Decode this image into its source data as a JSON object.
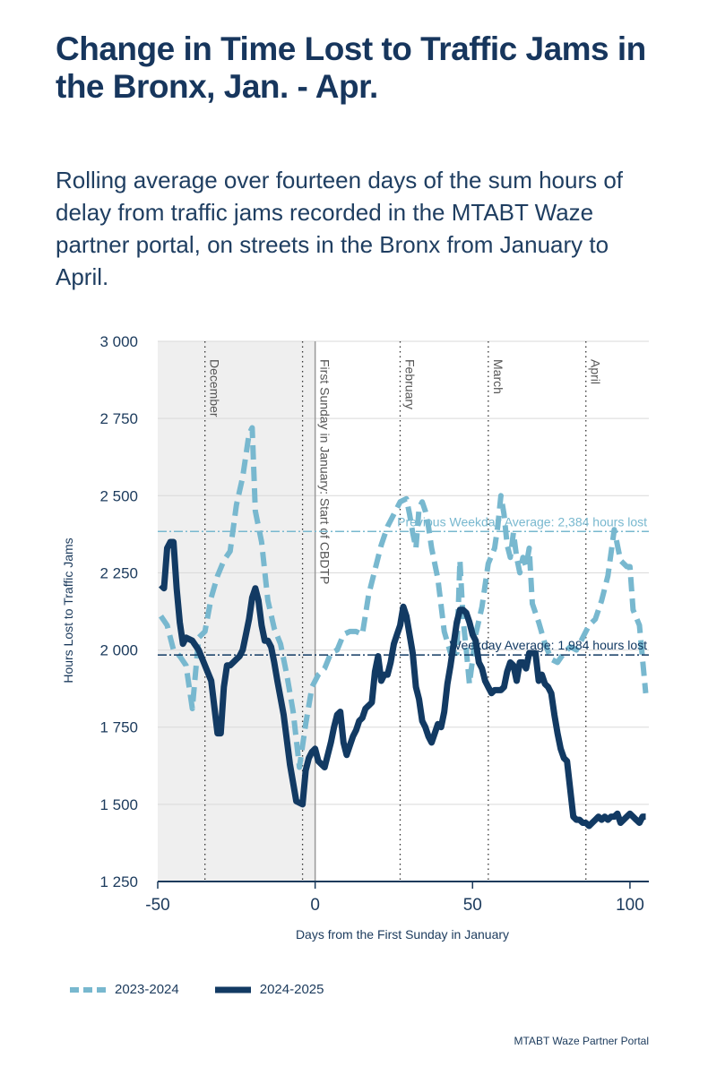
{
  "header": {
    "title": "Change in Time Lost to Traffic Jams in the Bronx, Jan. - Apr.",
    "subtitle": "Rolling average over fourteen days of the sum hours of delay from traffic jams recorded in the MTABT Waze partner portal, on streets in the Bronx from January to April."
  },
  "source": "MTABT Waze Partner Portal",
  "colors": {
    "series_2023": "#78b8cf",
    "series_2024": "#123a63",
    "shade": "#efefef",
    "axis": "#1b3a5c"
  },
  "chart_data": {
    "type": "line",
    "xlabel": "Days from the First Sunday in January",
    "ylabel": "Hours Lost to Traffic Jams",
    "xlim": [
      -50,
      106
    ],
    "ylim": [
      1250,
      3000
    ],
    "xticks": [
      -50,
      0,
      50,
      100
    ],
    "xtick_labels": [
      "-50",
      "0",
      "50",
      "100"
    ],
    "yticks": [
      1250,
      1500,
      1750,
      2000,
      2250,
      2500,
      2750,
      3000
    ],
    "ytick_labels": [
      "1 250",
      "1 500",
      "1 750",
      "2 000",
      "2 250",
      "2 500",
      "2 750",
      "3 000"
    ],
    "shaded_region": [
      -50,
      0
    ],
    "vlines": [
      {
        "x": -35,
        "label": "December",
        "style": "dotted"
      },
      {
        "x": -4,
        "label": "",
        "style": "dotted"
      },
      {
        "x": 0,
        "label": "First Sunday in January: Start of CBDTP",
        "style": "solid"
      },
      {
        "x": 27,
        "label": "February",
        "style": "dotted"
      },
      {
        "x": 55,
        "label": "March",
        "style": "dotted"
      },
      {
        "x": 86,
        "label": "April",
        "style": "dotted"
      }
    ],
    "hlines": [
      {
        "y": 2384,
        "label": "Previous Weekday Average: 2,384 hours lost",
        "series": "2023-2024"
      },
      {
        "y": 1984,
        "label": "Weekday Average: 1,984 hours lost",
        "series": "2024-2025"
      }
    ],
    "legend": {
      "position": "bottom-left",
      "entries": [
        "2023-2024",
        "2024-2025"
      ]
    },
    "series": [
      {
        "name": "2023-2024",
        "style": "dashed",
        "x": [
          -49,
          -47,
          -45,
          -43,
          -41,
          -39,
          -37,
          -35,
          -33,
          -31,
          -29,
          -27,
          -25,
          -23,
          -21,
          -20,
          -19,
          -17,
          -15,
          -13,
          -11,
          -9,
          -7,
          -5,
          -3,
          -1,
          1,
          3,
          5,
          7,
          9,
          11,
          13,
          15,
          17,
          19,
          21,
          23,
          25,
          27,
          29,
          30,
          31,
          32,
          33,
          34,
          35,
          36,
          37,
          39,
          41,
          43,
          45,
          46,
          47,
          48,
          49,
          51,
          53,
          55,
          57,
          58,
          59,
          60,
          61,
          62,
          63,
          64,
          65,
          66,
          67,
          68,
          69,
          71,
          73,
          75,
          77,
          79,
          81,
          83,
          85,
          87,
          89,
          91,
          93,
          95,
          97,
          99,
          100,
          101,
          103,
          105
        ],
        "values": [
          2110,
          2080,
          2000,
          1980,
          1950,
          1810,
          2040,
          2060,
          2170,
          2240,
          2290,
          2320,
          2470,
          2560,
          2700,
          2720,
          2450,
          2350,
          2160,
          2070,
          2020,
          1920,
          1800,
          1620,
          1760,
          1880,
          1920,
          1940,
          1990,
          2000,
          2050,
          2060,
          2060,
          2050,
          2180,
          2260,
          2340,
          2400,
          2440,
          2480,
          2490,
          2440,
          2380,
          2330,
          2460,
          2480,
          2450,
          2400,
          2330,
          2230,
          2060,
          1990,
          1990,
          2290,
          2100,
          2000,
          1890,
          2050,
          2140,
          2280,
          2330,
          2400,
          2500,
          2440,
          2340,
          2300,
          2380,
          2300,
          2250,
          2300,
          2270,
          2330,
          2150,
          2090,
          2020,
          1970,
          1960,
          1990,
          2010,
          2000,
          2040,
          2080,
          2100,
          2160,
          2240,
          2390,
          2290,
          2270,
          2270,
          2130,
          2080,
          1860
        ]
      },
      {
        "name": "2024-2025",
        "style": "solid",
        "x": [
          -49,
          -48,
          -47,
          -46,
          -45,
          -44,
          -43,
          -42,
          -41,
          -39,
          -37,
          -35,
          -33,
          -31,
          -30,
          -29,
          -28,
          -27,
          -26,
          -25,
          -24,
          -23,
          -22,
          -21,
          -20,
          -19,
          -18,
          -17,
          -16,
          -15,
          -14,
          -13,
          -12,
          -10,
          -8,
          -6,
          -4,
          -3,
          -2,
          -1,
          0,
          1,
          2,
          3,
          4,
          5,
          6,
          7,
          8,
          9,
          10,
          11,
          12,
          13,
          14,
          15,
          16,
          17,
          18,
          19,
          20,
          21,
          22,
          23,
          24,
          25,
          26,
          27,
          28,
          29,
          30,
          31,
          32,
          33,
          34,
          35,
          36,
          37,
          38,
          39,
          40,
          41,
          42,
          43,
          44,
          45,
          46,
          47,
          48,
          49,
          50,
          51,
          52,
          53,
          54,
          55,
          56,
          57,
          58,
          59,
          60,
          61,
          62,
          63,
          64,
          65,
          66,
          67,
          68,
          69,
          70,
          71,
          72,
          73,
          74,
          75,
          76,
          77,
          78,
          79,
          80,
          81,
          82,
          83,
          84,
          85,
          86,
          87,
          88,
          89,
          90,
          91,
          92,
          93,
          94,
          95,
          96,
          97,
          98,
          99,
          100,
          101,
          102,
          103,
          104,
          105
        ],
        "values": [
          2210,
          2200,
          2330,
          2350,
          2350,
          2200,
          2090,
          2020,
          2040,
          2030,
          2000,
          1950,
          1900,
          1730,
          1730,
          1880,
          1950,
          1950,
          1960,
          1970,
          1980,
          2000,
          2050,
          2100,
          2170,
          2200,
          2160,
          2080,
          2030,
          2030,
          2010,
          1960,
          1900,
          1790,
          1630,
          1510,
          1500,
          1610,
          1650,
          1670,
          1680,
          1640,
          1630,
          1620,
          1660,
          1700,
          1750,
          1790,
          1800,
          1700,
          1660,
          1690,
          1720,
          1740,
          1770,
          1780,
          1810,
          1820,
          1830,
          1930,
          1980,
          1900,
          1920,
          1920,
          1960,
          2020,
          2050,
          2080,
          2140,
          2110,
          2050,
          1990,
          1880,
          1840,
          1770,
          1750,
          1720,
          1700,
          1730,
          1760,
          1750,
          1800,
          1890,
          1950,
          2020,
          2090,
          2130,
          2130,
          2120,
          2090,
          2050,
          2030,
          1960,
          1940,
          1900,
          1880,
          1860,
          1870,
          1870,
          1870,
          1880,
          1930,
          1960,
          1950,
          1900,
          1960,
          1960,
          1940,
          1990,
          1990,
          1990,
          1900,
          1920,
          1890,
          1880,
          1860,
          1790,
          1730,
          1680,
          1650,
          1640,
          1550,
          1460,
          1450,
          1450,
          1440,
          1440,
          1430,
          1440,
          1450,
          1460,
          1450,
          1460,
          1450,
          1460,
          1460,
          1470,
          1440,
          1450,
          1460,
          1470,
          1460,
          1450,
          1440,
          1460,
          1460
        ]
      }
    ]
  }
}
